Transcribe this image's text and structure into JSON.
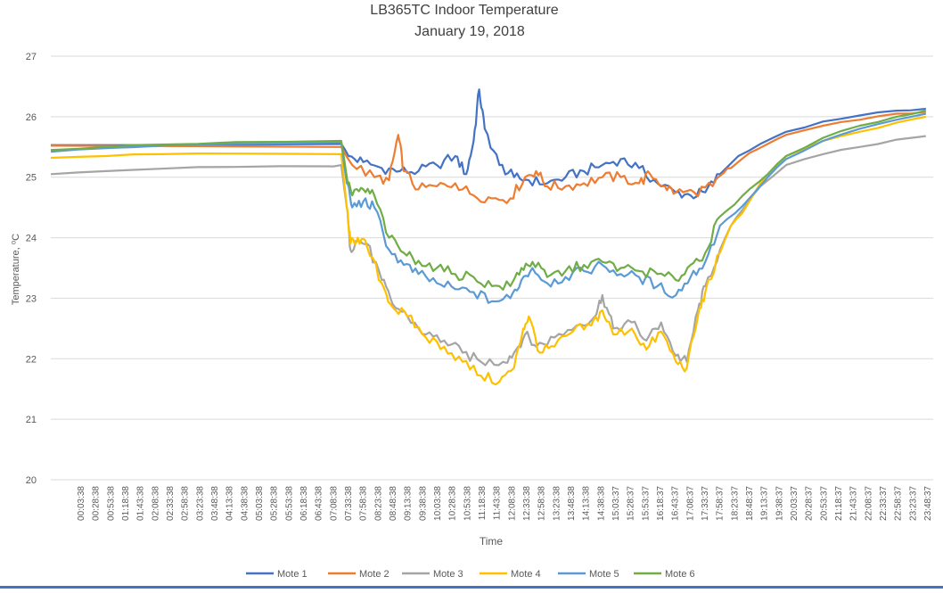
{
  "chart_data": {
    "type": "line",
    "title": "LB365TC Indoor Temperature",
    "subtitle": "January 19, 2018",
    "xlabel": "Time",
    "ylabel": "Temperature, ⁰C",
    "ylim": [
      20,
      27
    ],
    "yticks": [
      20,
      21,
      22,
      23,
      24,
      25,
      26,
      27
    ],
    "grid": true,
    "legend_position": "bottom",
    "x_tick_labels": [
      "00:03:38",
      "00:28:38",
      "00:53:38",
      "01:18:38",
      "01:43:38",
      "02:08:38",
      "02:33:38",
      "02:58:38",
      "03:23:38",
      "03:48:38",
      "04:13:38",
      "04:38:38",
      "05:03:38",
      "05:28:38",
      "05:53:38",
      "06:18:38",
      "06:43:38",
      "07:08:38",
      "07:33:38",
      "07:58:38",
      "08:23:38",
      "08:48:38",
      "09:13:38",
      "09:38:38",
      "10:03:38",
      "10:28:38",
      "10:53:38",
      "11:18:38",
      "11:43:38",
      "12:08:38",
      "12:33:38",
      "12:58:38",
      "13:23:38",
      "13:48:38",
      "14:13:38",
      "14:38:38",
      "15:03:37",
      "15:28:37",
      "15:53:37",
      "16:18:37",
      "16:43:37",
      "17:08:37",
      "17:33:37",
      "17:58:37",
      "18:23:37",
      "18:48:37",
      "19:13:37",
      "19:38:37",
      "20:03:37",
      "20:28:37",
      "20:53:37",
      "21:18:37",
      "21:43:37",
      "22:08:37",
      "22:33:37",
      "22:58:37",
      "23:23:37",
      "23:48:37"
    ],
    "series": [
      {
        "name": "Mote 1",
        "color": "#4472c4",
        "points": [
          [
            0,
            25.53
          ],
          [
            7.9,
            25.55
          ],
          [
            8.1,
            25.35
          ],
          [
            8.5,
            25.25
          ],
          [
            9.0,
            25.15
          ],
          [
            9.5,
            25.1
          ],
          [
            10.0,
            25.1
          ],
          [
            10.5,
            25.2
          ],
          [
            11.0,
            25.35
          ],
          [
            11.3,
            25.05
          ],
          [
            11.5,
            25.6
          ],
          [
            11.65,
            26.45
          ],
          [
            11.8,
            25.8
          ],
          [
            12.2,
            25.2
          ],
          [
            12.6,
            25.0
          ],
          [
            13.0,
            24.95
          ],
          [
            13.5,
            24.9
          ],
          [
            14.0,
            25.0
          ],
          [
            14.5,
            25.1
          ],
          [
            15.0,
            25.2
          ],
          [
            15.5,
            25.3
          ],
          [
            16.0,
            25.15
          ],
          [
            16.5,
            24.9
          ],
          [
            17.0,
            24.75
          ],
          [
            17.4,
            24.7
          ],
          [
            17.8,
            24.75
          ],
          [
            18.2,
            25.05
          ],
          [
            18.7,
            25.35
          ],
          [
            19.3,
            25.55
          ],
          [
            20.0,
            25.75
          ],
          [
            21.0,
            25.92
          ],
          [
            22.0,
            26.02
          ],
          [
            23.0,
            26.1
          ],
          [
            23.8,
            26.13
          ]
        ]
      },
      {
        "name": "Mote 2",
        "color": "#ed7d31",
        "points": [
          [
            0,
            25.52
          ],
          [
            7.9,
            25.5
          ],
          [
            8.2,
            25.2
          ],
          [
            8.8,
            25.0
          ],
          [
            9.2,
            24.95
          ],
          [
            9.45,
            25.7
          ],
          [
            9.6,
            25.1
          ],
          [
            10.0,
            24.8
          ],
          [
            10.5,
            24.85
          ],
          [
            11.0,
            24.9
          ],
          [
            11.5,
            24.7
          ],
          [
            12.0,
            24.65
          ],
          [
            12.5,
            24.65
          ],
          [
            12.9,
            25.0
          ],
          [
            13.2,
            25.1
          ],
          [
            13.5,
            24.85
          ],
          [
            14.0,
            24.85
          ],
          [
            14.5,
            24.9
          ],
          [
            15.0,
            25.0
          ],
          [
            15.5,
            25.0
          ],
          [
            16.0,
            24.9
          ],
          [
            16.3,
            25.05
          ],
          [
            16.7,
            24.85
          ],
          [
            17.0,
            24.75
          ],
          [
            17.5,
            24.75
          ],
          [
            18.0,
            24.85
          ],
          [
            18.5,
            25.15
          ],
          [
            19.0,
            25.4
          ],
          [
            19.5,
            25.55
          ],
          [
            20.0,
            25.7
          ],
          [
            21.0,
            25.85
          ],
          [
            22.0,
            25.95
          ],
          [
            23.0,
            26.05
          ],
          [
            23.8,
            26.08
          ]
        ]
      },
      {
        "name": "Mote 3",
        "color": "#a5a5a5",
        "points": [
          [
            0,
            25.05
          ],
          [
            1.5,
            25.1
          ],
          [
            3.0,
            25.14
          ],
          [
            5.0,
            25.17
          ],
          [
            7.5,
            25.18
          ],
          [
            7.9,
            25.2
          ],
          [
            8.05,
            24.5
          ],
          [
            8.15,
            23.8
          ],
          [
            8.3,
            23.95
          ],
          [
            8.6,
            23.9
          ],
          [
            9.0,
            23.3
          ],
          [
            9.3,
            22.9
          ],
          [
            9.7,
            22.7
          ],
          [
            10.2,
            22.4
          ],
          [
            10.7,
            22.3
          ],
          [
            11.2,
            22.1
          ],
          [
            11.7,
            21.95
          ],
          [
            12.3,
            21.95
          ],
          [
            12.6,
            22.1
          ],
          [
            12.9,
            22.4
          ],
          [
            13.2,
            22.2
          ],
          [
            13.7,
            22.35
          ],
          [
            14.3,
            22.55
          ],
          [
            14.8,
            22.7
          ],
          [
            15.0,
            23.05
          ],
          [
            15.3,
            22.5
          ],
          [
            15.8,
            22.6
          ],
          [
            16.2,
            22.3
          ],
          [
            16.6,
            22.6
          ],
          [
            17.0,
            22.05
          ],
          [
            17.3,
            21.95
          ],
          [
            17.6,
            22.8
          ],
          [
            17.8,
            23.2
          ],
          [
            18.2,
            23.8
          ],
          [
            18.5,
            24.2
          ],
          [
            18.8,
            24.45
          ],
          [
            19.3,
            24.85
          ],
          [
            20.0,
            25.2
          ],
          [
            21.0,
            25.38
          ],
          [
            22.0,
            25.5
          ],
          [
            23.0,
            25.62
          ],
          [
            23.8,
            25.68
          ]
        ]
      },
      {
        "name": "Mote 4",
        "color": "#ffc000",
        "points": [
          [
            0,
            25.32
          ],
          [
            1.5,
            25.35
          ],
          [
            3.0,
            25.38
          ],
          [
            5.0,
            25.39
          ],
          [
            7.9,
            25.38
          ],
          [
            8.05,
            24.5
          ],
          [
            8.15,
            23.9
          ],
          [
            8.35,
            24.0
          ],
          [
            8.6,
            23.85
          ],
          [
            9.0,
            23.25
          ],
          [
            9.3,
            22.85
          ],
          [
            9.7,
            22.7
          ],
          [
            10.2,
            22.35
          ],
          [
            10.7,
            22.2
          ],
          [
            11.2,
            21.95
          ],
          [
            11.7,
            21.72
          ],
          [
            12.2,
            21.62
          ],
          [
            12.6,
            21.85
          ],
          [
            12.85,
            22.5
          ],
          [
            13.0,
            22.7
          ],
          [
            13.3,
            22.1
          ],
          [
            13.7,
            22.2
          ],
          [
            14.2,
            22.45
          ],
          [
            14.7,
            22.55
          ],
          [
            15.0,
            22.8
          ],
          [
            15.3,
            22.4
          ],
          [
            15.8,
            22.5
          ],
          [
            16.2,
            22.15
          ],
          [
            16.6,
            22.45
          ],
          [
            17.0,
            21.95
          ],
          [
            17.3,
            21.85
          ],
          [
            17.6,
            22.7
          ],
          [
            17.8,
            23.1
          ],
          [
            18.2,
            23.75
          ],
          [
            18.5,
            24.2
          ],
          [
            18.8,
            24.4
          ],
          [
            19.3,
            24.9
          ],
          [
            20.0,
            25.35
          ],
          [
            21.0,
            25.6
          ],
          [
            22.0,
            25.75
          ],
          [
            23.0,
            25.9
          ],
          [
            23.8,
            26.0
          ]
        ]
      },
      {
        "name": "Mote 5",
        "color": "#5b9bd5",
        "points": [
          [
            0,
            25.42
          ],
          [
            1.5,
            25.48
          ],
          [
            3.0,
            25.52
          ],
          [
            5.0,
            25.55
          ],
          [
            7.9,
            25.58
          ],
          [
            8.05,
            24.9
          ],
          [
            8.2,
            24.5
          ],
          [
            8.5,
            24.6
          ],
          [
            8.8,
            24.5
          ],
          [
            9.2,
            23.8
          ],
          [
            9.6,
            23.55
          ],
          [
            10.0,
            23.4
          ],
          [
            10.5,
            23.25
          ],
          [
            11.0,
            23.15
          ],
          [
            11.5,
            23.1
          ],
          [
            12.0,
            22.95
          ],
          [
            12.5,
            23.0
          ],
          [
            12.8,
            23.3
          ],
          [
            13.1,
            23.5
          ],
          [
            13.5,
            23.25
          ],
          [
            14.0,
            23.35
          ],
          [
            14.5,
            23.45
          ],
          [
            15.0,
            23.55
          ],
          [
            15.5,
            23.4
          ],
          [
            16.0,
            23.35
          ],
          [
            16.5,
            23.2
          ],
          [
            17.0,
            23.05
          ],
          [
            17.4,
            23.35
          ],
          [
            17.8,
            23.6
          ],
          [
            18.2,
            24.2
          ],
          [
            18.6,
            24.4
          ],
          [
            19.0,
            24.65
          ],
          [
            19.5,
            25.0
          ],
          [
            20.0,
            25.3
          ],
          [
            21.0,
            25.6
          ],
          [
            22.0,
            25.8
          ],
          [
            23.0,
            25.95
          ],
          [
            23.8,
            26.05
          ]
        ]
      },
      {
        "name": "Mote 6",
        "color": "#70ad47",
        "points": [
          [
            0,
            25.45
          ],
          [
            1.5,
            25.5
          ],
          [
            3.0,
            25.54
          ],
          [
            5.0,
            25.58
          ],
          [
            7.9,
            25.6
          ],
          [
            8.05,
            25.0
          ],
          [
            8.2,
            24.7
          ],
          [
            8.5,
            24.8
          ],
          [
            8.8,
            24.7
          ],
          [
            9.2,
            24.0
          ],
          [
            9.6,
            23.75
          ],
          [
            10.0,
            23.62
          ],
          [
            10.5,
            23.5
          ],
          [
            11.0,
            23.4
          ],
          [
            11.5,
            23.35
          ],
          [
            12.0,
            23.2
          ],
          [
            12.5,
            23.2
          ],
          [
            12.8,
            23.5
          ],
          [
            13.1,
            23.6
          ],
          [
            13.5,
            23.35
          ],
          [
            14.0,
            23.45
          ],
          [
            14.5,
            23.55
          ],
          [
            15.0,
            23.6
          ],
          [
            15.5,
            23.5
          ],
          [
            16.0,
            23.45
          ],
          [
            16.5,
            23.4
          ],
          [
            17.0,
            23.3
          ],
          [
            17.4,
            23.55
          ],
          [
            17.8,
            23.75
          ],
          [
            18.2,
            24.35
          ],
          [
            18.6,
            24.55
          ],
          [
            19.0,
            24.8
          ],
          [
            19.5,
            25.05
          ],
          [
            20.0,
            25.35
          ],
          [
            21.0,
            25.65
          ],
          [
            22.0,
            25.85
          ],
          [
            23.0,
            26.0
          ],
          [
            23.8,
            26.1
          ]
        ]
      }
    ]
  }
}
